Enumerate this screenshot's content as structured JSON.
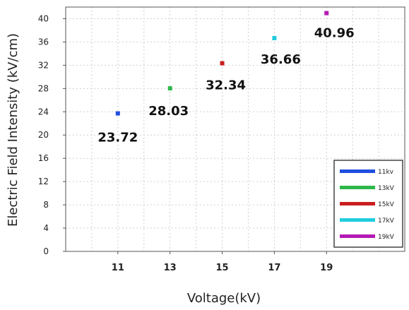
{
  "chart_data": {
    "type": "scatter",
    "xlabel": "Voltage(kV)",
    "ylabel": "Electric Field Intensity (kV/cm)",
    "xlim": [
      9,
      22
    ],
    "ylim": [
      0,
      42
    ],
    "xticks": [
      "11",
      "13",
      "15",
      "17",
      "19"
    ],
    "yticks": [
      "0",
      "4",
      "8",
      "12",
      "16",
      "20",
      "24",
      "28",
      "32",
      "36",
      "40"
    ],
    "grid": true,
    "legend_position": "bottom-right",
    "series": [
      {
        "name": "11kv",
        "color": "#1f4fe0",
        "x": 11,
        "y": 23.72,
        "label": "23.72"
      },
      {
        "name": "13kV",
        "color": "#2eb84a",
        "x": 13,
        "y": 28.03,
        "label": "28.03"
      },
      {
        "name": "15kV",
        "color": "#c81e1e",
        "x": 15,
        "y": 32.34,
        "label": "32.34"
      },
      {
        "name": "17kV",
        "color": "#22ccdd",
        "x": 17,
        "y": 36.66,
        "label": "36.66"
      },
      {
        "name": "19kV",
        "color": "#b51ab5",
        "x": 19,
        "y": 40.96,
        "label": "40.96"
      }
    ]
  }
}
